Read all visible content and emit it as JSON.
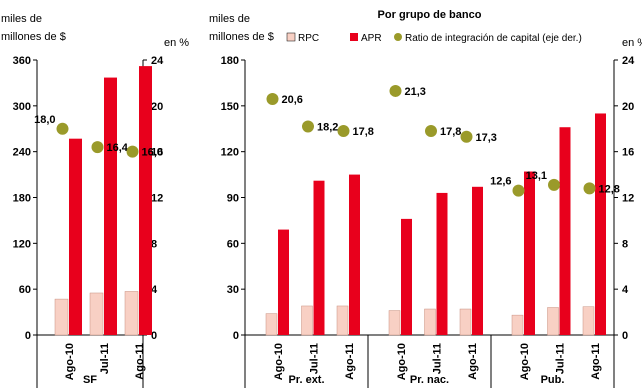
{
  "colors": {
    "rpc": "#f8d0c4",
    "apr": "#e8001c",
    "ratio": "#9a9a2a",
    "axis": "#000000"
  },
  "chart_data": [
    {
      "type": "bar",
      "title": "",
      "ylabel_left": [
        "miles de",
        "millones de $"
      ],
      "ylabel_right": "en %",
      "left_ticks": [
        "0",
        "60",
        "120",
        "180",
        "240",
        "300",
        "360"
      ],
      "right_ticks": [
        "0",
        "4",
        "8",
        "12",
        "16",
        "20",
        "24"
      ],
      "ylim_left": [
        0,
        360
      ],
      "ylim_right": [
        0,
        24
      ],
      "groups": [
        {
          "label": "SF",
          "categories": [
            "Ago-10",
            "Jul-11",
            "Ago-11"
          ]
        }
      ],
      "series": [
        {
          "name": "RPC",
          "axis": "left",
          "kind": "bar",
          "values": [
            47,
            55,
            57
          ]
        },
        {
          "name": "APR",
          "axis": "left",
          "kind": "bar",
          "values": [
            257,
            337,
            352
          ]
        },
        {
          "name": "Ratio de integración de capital (eje der.)",
          "axis": "right",
          "kind": "scatter",
          "values": [
            18.0,
            16.4,
            16.0
          ],
          "labels": [
            "18,0",
            "16,4",
            "16,0"
          ]
        }
      ]
    },
    {
      "type": "bar",
      "title": "Por grupo de banco",
      "ylabel_left": [
        "miles de",
        "millones de $"
      ],
      "ylabel_right": "en %",
      "left_ticks": [
        "0",
        "30",
        "60",
        "90",
        "120",
        "150",
        "180"
      ],
      "right_ticks": [
        "0",
        "4",
        "8",
        "12",
        "16",
        "20",
        "24"
      ],
      "ylim_left": [
        0,
        180
      ],
      "ylim_right": [
        0,
        24
      ],
      "legend_position": "top",
      "legend": [
        "RPC",
        "APR",
        "Ratio de integración de capital (eje der.)"
      ],
      "groups": [
        {
          "label": "Pr. ext.",
          "categories": [
            "Ago-10",
            "Jul-11",
            "Ago-11"
          ]
        },
        {
          "label": "Pr. nac.",
          "categories": [
            "Ago-10",
            "Jul-11",
            "Ago-11"
          ]
        },
        {
          "label": "Pub.",
          "categories": [
            "Ago-10",
            "Jul-11",
            "Ago-11"
          ]
        }
      ],
      "series": [
        {
          "name": "RPC",
          "axis": "left",
          "kind": "bar",
          "values": [
            14,
            19,
            19,
            16,
            17,
            17,
            13,
            18,
            18.5
          ]
        },
        {
          "name": "APR",
          "axis": "left",
          "kind": "bar",
          "values": [
            69,
            101,
            105,
            76,
            93,
            97,
            107,
            136,
            145
          ]
        },
        {
          "name": "Ratio de integración de capital (eje der.)",
          "axis": "right",
          "kind": "scatter",
          "values": [
            20.6,
            18.2,
            17.8,
            21.3,
            17.8,
            17.3,
            12.6,
            13.1,
            12.8
          ],
          "labels": [
            "20,6",
            "18,2",
            "17,8",
            "21,3",
            "17,8",
            "17,3",
            "12,6",
            "13,1",
            "12,8"
          ]
        }
      ]
    }
  ]
}
